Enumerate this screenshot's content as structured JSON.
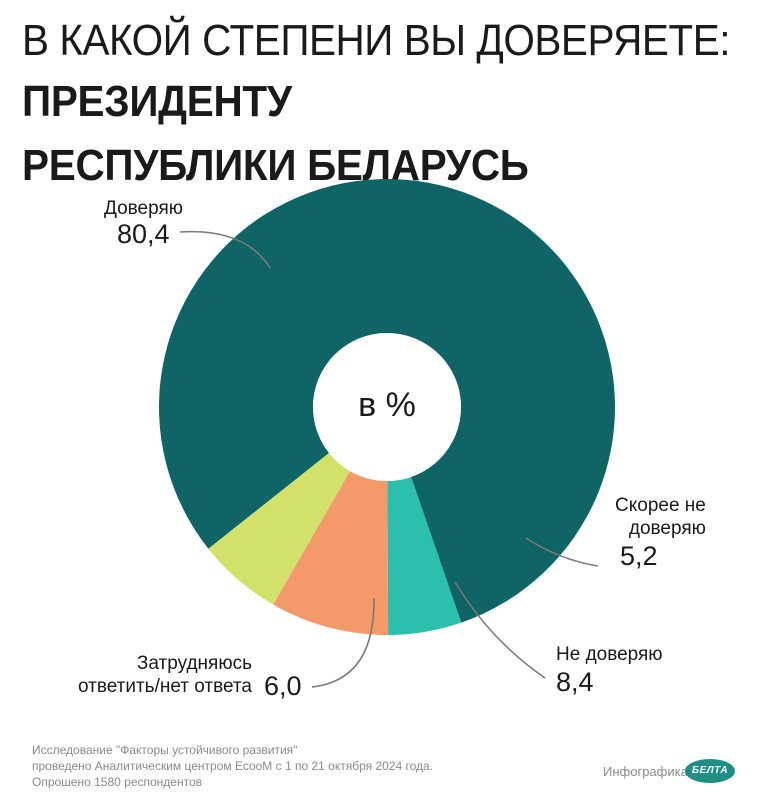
{
  "title": {
    "line1": "В КАКОЙ СТЕПЕНИ ВЫ ДОВЕРЯЕТЕ:",
    "line2": "ПРЕЗИДЕНТУ РЕСПУБЛИКИ БЕЛАРУСЬ"
  },
  "chart_data": {
    "type": "pie",
    "center_label": "в %",
    "slices": [
      {
        "name": "Доверяю",
        "value": 80.4,
        "value_label": "80,4",
        "color": "#0f6466"
      },
      {
        "name": "Скорее не доверяю",
        "value": 5.2,
        "value_label": "5,2",
        "color": "#2bbfae"
      },
      {
        "name": "Не доверяю",
        "value": 8.4,
        "value_label": "8,4",
        "color": "#f4996a"
      },
      {
        "name": "Затрудняюсь ответить/нет ответа",
        "value": 6.0,
        "value_label": "6,0",
        "color": "#d3e069"
      }
    ]
  },
  "labels": {
    "trust": "Доверяю",
    "rather_not_line1": "Скорее не",
    "rather_not_line2": "доверяю",
    "not_trust": "Не доверяю",
    "hard_line1": "Затрудняюсь",
    "hard_line2": "ответить/нет ответа"
  },
  "footer": {
    "line1": "Исследование \"Факторы устойчивого развития\"",
    "line2": "проведено Аналитическим центром EcooM с 1 по 21 октября 2024 года.",
    "line3": "Опрошено 1580 респондентов",
    "credit": "Инфографика",
    "logo": "БЕЛТА"
  },
  "colors": {
    "leader_line": "#7a7a7a"
  }
}
